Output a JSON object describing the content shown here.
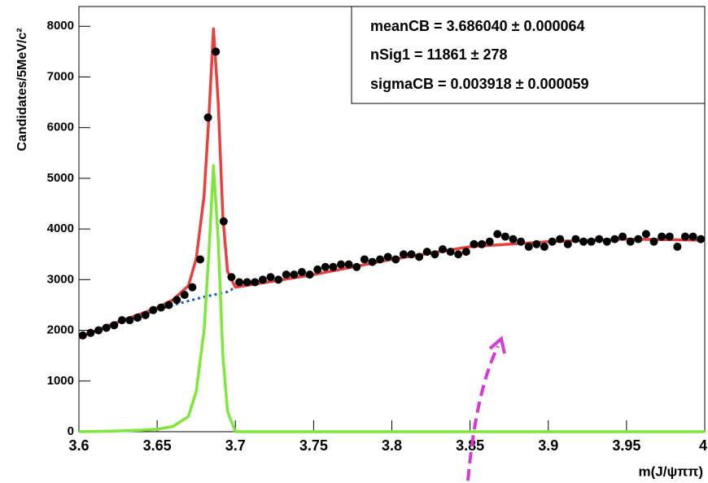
{
  "chart_data": {
    "type": "scatter",
    "x_label": "m(J/ψππ)",
    "y_label": "Candidates/5MeV/c²",
    "xlim": [
      3.6,
      4.0
    ],
    "ylim": [
      0,
      8390
    ],
    "xticks": [
      3.6,
      3.65,
      3.7,
      3.75,
      3.8,
      3.85,
      3.9,
      3.95,
      4
    ],
    "yticks": [
      0,
      1000,
      2000,
      3000,
      4000,
      5000,
      6000,
      7000,
      8000
    ],
    "stats": [
      "meanCB =  3.686040 ± 0.000064",
      "nSig1 =  11861 ± 278",
      "sigmaCB =  0.003918 ± 0.000059"
    ],
    "data": {
      "color": "#000000",
      "x": [
        3.6025,
        3.6075,
        3.6125,
        3.6175,
        3.6225,
        3.6275,
        3.6325,
        3.6375,
        3.6425,
        3.6475,
        3.6525,
        3.6575,
        3.6625,
        3.6675,
        3.6725,
        3.6775,
        3.6825,
        3.6875,
        3.6925,
        3.6975,
        3.7025,
        3.7075,
        3.7125,
        3.7175,
        3.7225,
        3.7275,
        3.7325,
        3.7375,
        3.7425,
        3.7475,
        3.7525,
        3.7575,
        3.7625,
        3.7675,
        3.7725,
        3.7775,
        3.7825,
        3.7875,
        3.7925,
        3.7975,
        3.8025,
        3.8075,
        3.8125,
        3.8175,
        3.8225,
        3.8275,
        3.8325,
        3.8375,
        3.8425,
        3.8475,
        3.8525,
        3.8575,
        3.8625,
        3.8675,
        3.8725,
        3.8775,
        3.8825,
        3.8875,
        3.8925,
        3.8975,
        3.9025,
        3.9075,
        3.9125,
        3.9175,
        3.9225,
        3.9275,
        3.9325,
        3.9375,
        3.9425,
        3.9475,
        3.9525,
        3.9575,
        3.9625,
        3.9675,
        3.9725,
        3.9775,
        3.9825,
        3.9875,
        3.9925,
        3.9975
      ],
      "values": [
        1900,
        1950,
        2000,
        2050,
        2100,
        2200,
        2200,
        2250,
        2300,
        2400,
        2450,
        2500,
        2600,
        2700,
        2850,
        3400,
        6200,
        7500,
        4150,
        3050,
        2950,
        2950,
        2950,
        3000,
        3050,
        3000,
        3100,
        3100,
        3150,
        3100,
        3200,
        3250,
        3250,
        3300,
        3300,
        3250,
        3400,
        3350,
        3400,
        3450,
        3400,
        3500,
        3500,
        3450,
        3550,
        3500,
        3600,
        3550,
        3500,
        3550,
        3700,
        3700,
        3750,
        3900,
        3850,
        3800,
        3750,
        3650,
        3700,
        3650,
        3750,
        3800,
        3700,
        3800,
        3750,
        3750,
        3800,
        3750,
        3800,
        3850,
        3750,
        3800,
        3900,
        3750,
        3850,
        3850,
        3650,
        3850,
        3850,
        3800
      ]
    },
    "curve_x": [
      3.6,
      3.62,
      3.64,
      3.65,
      3.66,
      3.67,
      3.675,
      3.68,
      3.683,
      3.686,
      3.689,
      3.692,
      3.695,
      3.7,
      3.72,
      3.75,
      3.8,
      3.85,
      3.9,
      3.95,
      4.0
    ],
    "curves": [
      {
        "color": "#1f4fe0",
        "dash": true,
        "values": [
          1850,
          2100,
          2300,
          2400,
          2500,
          2580,
          2620,
          2660,
          2680,
          2700,
          2720,
          2740,
          2760,
          2850,
          2950,
          3100,
          3400,
          3650,
          3750,
          3800,
          3780
        ]
      },
      {
        "color": "#7ee83a",
        "dash": false,
        "values": [
          0,
          10,
          30,
          50,
          100,
          300,
          800,
          2000,
          3500,
          5250,
          3800,
          1500,
          400,
          0,
          0,
          0,
          0,
          0,
          0,
          0,
          0
        ]
      },
      {
        "color": "#e8403a",
        "dash": false,
        "values": [
          1850,
          2110,
          2330,
          2450,
          2600,
          2880,
          3420,
          4660,
          6180,
          7950,
          6520,
          4240,
          3160,
          2850,
          2950,
          3100,
          3400,
          3650,
          3750,
          3800,
          3780
        ]
      }
    ]
  }
}
